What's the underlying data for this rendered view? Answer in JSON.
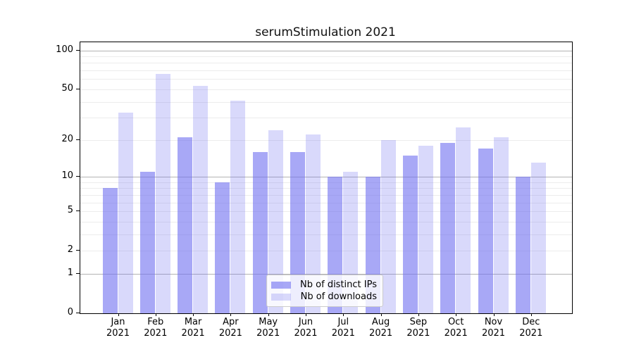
{
  "chart_data": {
    "type": "bar",
    "title": "serumStimulation 2021",
    "categories": [
      "Jan",
      "Feb",
      "Mar",
      "Apr",
      "May",
      "Jun",
      "Jul",
      "Aug",
      "Sep",
      "Oct",
      "Nov",
      "Dec"
    ],
    "x_year_label": "2021",
    "series": [
      {
        "name": "Nb of distinct IPs",
        "values": [
          8,
          11,
          21,
          9,
          16,
          16,
          10,
          10,
          15,
          19,
          17,
          10
        ],
        "color": "rgba(110,110,240,0.60)"
      },
      {
        "name": "Nb of downloads",
        "values": [
          33,
          66,
          53,
          41,
          24,
          22,
          11,
          20,
          18,
          25,
          21,
          13
        ],
        "color": "rgba(110,110,240,0.26)"
      }
    ],
    "xlabel": "",
    "ylabel": "",
    "yscale": "log1p",
    "ylim": [
      0,
      115
    ],
    "y_ticks": [
      100,
      50,
      20,
      10,
      5,
      2,
      1,
      0
    ],
    "grid": {
      "minor_lines_at": [
        2,
        3,
        4,
        5,
        6,
        7,
        8,
        9,
        20,
        30,
        40,
        50,
        60,
        70,
        80,
        90
      ],
      "major_lines_at": [
        1,
        10,
        100
      ]
    },
    "legend_position": "lower center",
    "colors": {
      "bar_dark": "rgba(110,110,240,0.60)",
      "bar_light": "rgba(110,110,240,0.26)",
      "grid_minor": "#ececec",
      "grid_major": "#b3b3b3",
      "axis": "#000000"
    }
  }
}
